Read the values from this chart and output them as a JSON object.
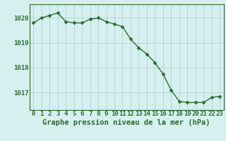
{
  "x": [
    0,
    1,
    2,
    3,
    4,
    5,
    6,
    7,
    8,
    9,
    10,
    11,
    12,
    13,
    14,
    15,
    16,
    17,
    18,
    19,
    20,
    21,
    22,
    23
  ],
  "y": [
    1019.8,
    1020.0,
    1020.1,
    1020.2,
    1019.85,
    1019.8,
    1019.8,
    1019.95,
    1020.0,
    1019.85,
    1019.75,
    1019.65,
    1019.15,
    1018.8,
    1018.55,
    1018.2,
    1017.75,
    1017.1,
    1016.65,
    1016.6,
    1016.6,
    1016.6,
    1016.8,
    1016.85
  ],
  "line_color": "#2d6a2d",
  "marker_color": "#2d6a2d",
  "background_color": "#d6f0f0",
  "grid_color": "#aacccc",
  "axis_color": "#2d6a2d",
  "xlabel": "Graphe pression niveau de la mer (hPa)",
  "ylim": [
    1016.3,
    1020.55
  ],
  "xlim": [
    -0.5,
    23.5
  ],
  "yticks": [
    1017,
    1018,
    1019,
    1020
  ],
  "xticks": [
    0,
    1,
    2,
    3,
    4,
    5,
    6,
    7,
    8,
    9,
    10,
    11,
    12,
    13,
    14,
    15,
    16,
    17,
    18,
    19,
    20,
    21,
    22,
    23
  ],
  "xlabel_fontsize": 7.5,
  "tick_fontsize": 6.5,
  "line_width": 1.0,
  "marker_size": 2.5
}
